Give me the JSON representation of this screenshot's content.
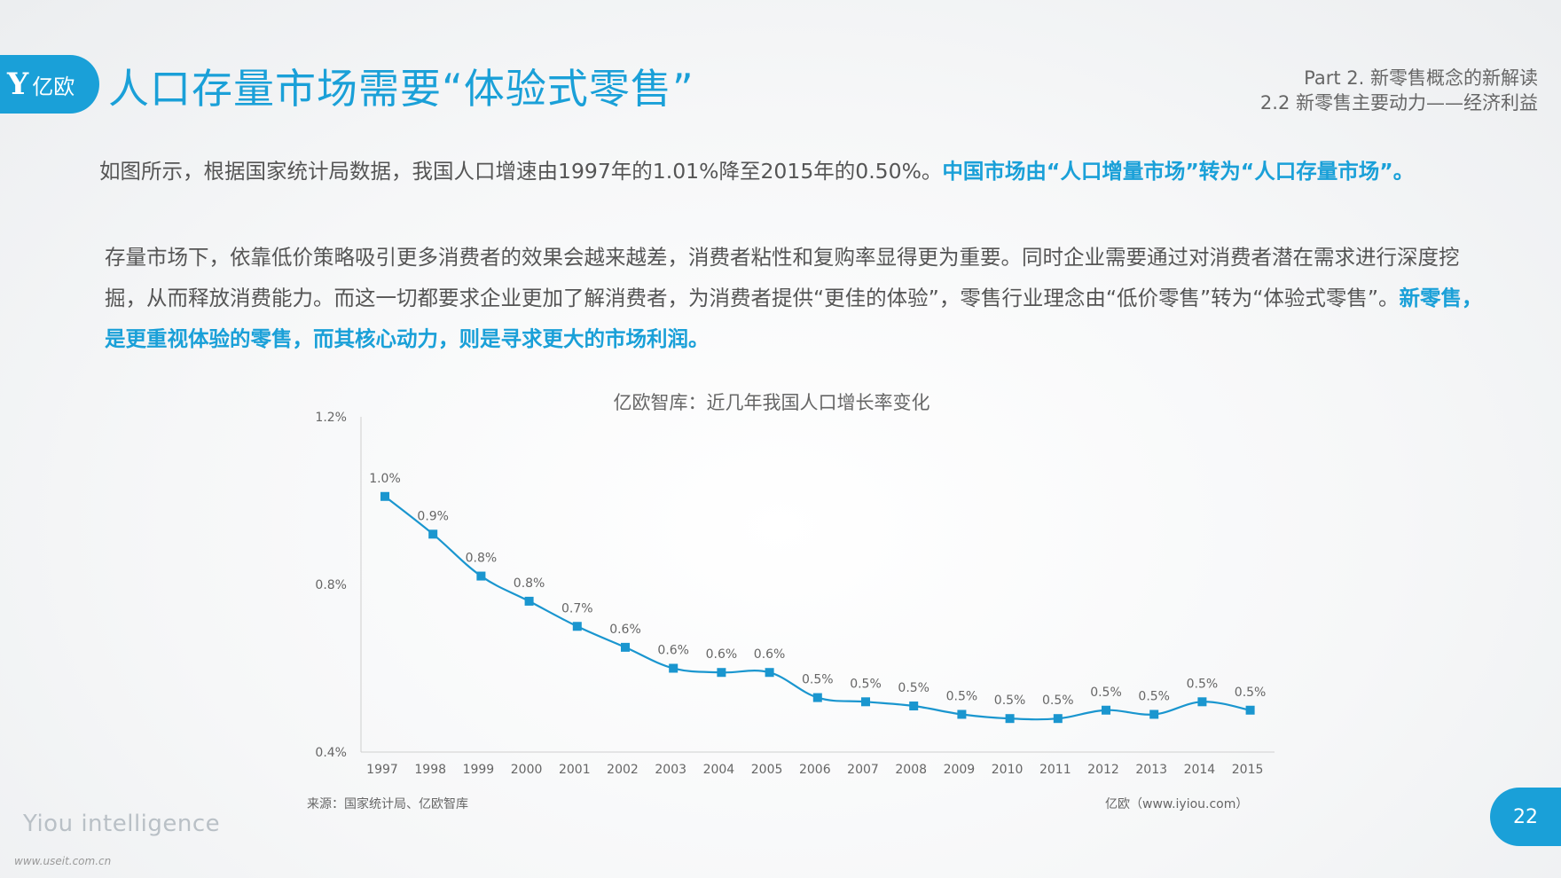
{
  "header": {
    "logo_mark": "Y",
    "logo_text": "亿欧",
    "title": "人口存量市场需要“体验式零售”",
    "part_line1": "Part 2. 新零售概念的新解读",
    "part_line2": "2.2 新零售主要动力——经济利益"
  },
  "body": {
    "p1_normal": "如图所示，根据国家统计局数据，我国人口增速由1997年的1.01%降至2015年的0.50%。",
    "p1_highlight": "中国市场由“人口增量市场”转为“人口存量市场”。",
    "p2_normal": "存量市场下，依靠低价策略吸引更多消费者的效果会越来越差，消费者粘性和复购率显得更为重要。同时企业需要通过对消费者潜在需求进行深度挖掘，从而释放消费能力。而这一切都要求企业更加了解消费者，为消费者提供“更佳的体验”，零售行业理念由“低价零售”转为“体验式零售”。",
    "p2_highlight": "新零售，是更重视体验的零售，而其核心动力，则是寻求更大的市场利润。"
  },
  "chart_data": {
    "type": "line",
    "title": "亿欧智库：近几年我国人口增长率变化",
    "x": [
      "1997",
      "1998",
      "1999",
      "2000",
      "2001",
      "2002",
      "2003",
      "2004",
      "2005",
      "2006",
      "2007",
      "2008",
      "2009",
      "2010",
      "2011",
      "2012",
      "2013",
      "2014",
      "2015"
    ],
    "values": [
      1.01,
      0.92,
      0.82,
      0.76,
      0.7,
      0.65,
      0.6,
      0.59,
      0.59,
      0.53,
      0.52,
      0.51,
      0.49,
      0.48,
      0.48,
      0.5,
      0.49,
      0.52,
      0.5
    ],
    "labels": [
      "1.0%",
      "0.9%",
      "0.8%",
      "0.8%",
      "0.7%",
      "0.6%",
      "0.6%",
      "0.6%",
      "0.6%",
      "0.5%",
      "0.5%",
      "0.5%",
      "0.5%",
      "0.5%",
      "0.5%",
      "0.5%",
      "0.5%",
      "0.5%",
      "0.5%"
    ],
    "yticks": [
      0.4,
      0.8,
      1.2
    ],
    "ytick_labels": [
      "0.4%",
      "0.8%",
      "1.2%"
    ],
    "ylim": [
      0.4,
      1.2
    ],
    "color": "#1a96cf",
    "grid": false
  },
  "footer": {
    "source": "来源：国家统计局、亿欧智库",
    "site": "亿欧（www.iyiou.com）",
    "brand": "Yiou intelligence",
    "watermark": "www.useit.com.cn",
    "page": "22"
  }
}
